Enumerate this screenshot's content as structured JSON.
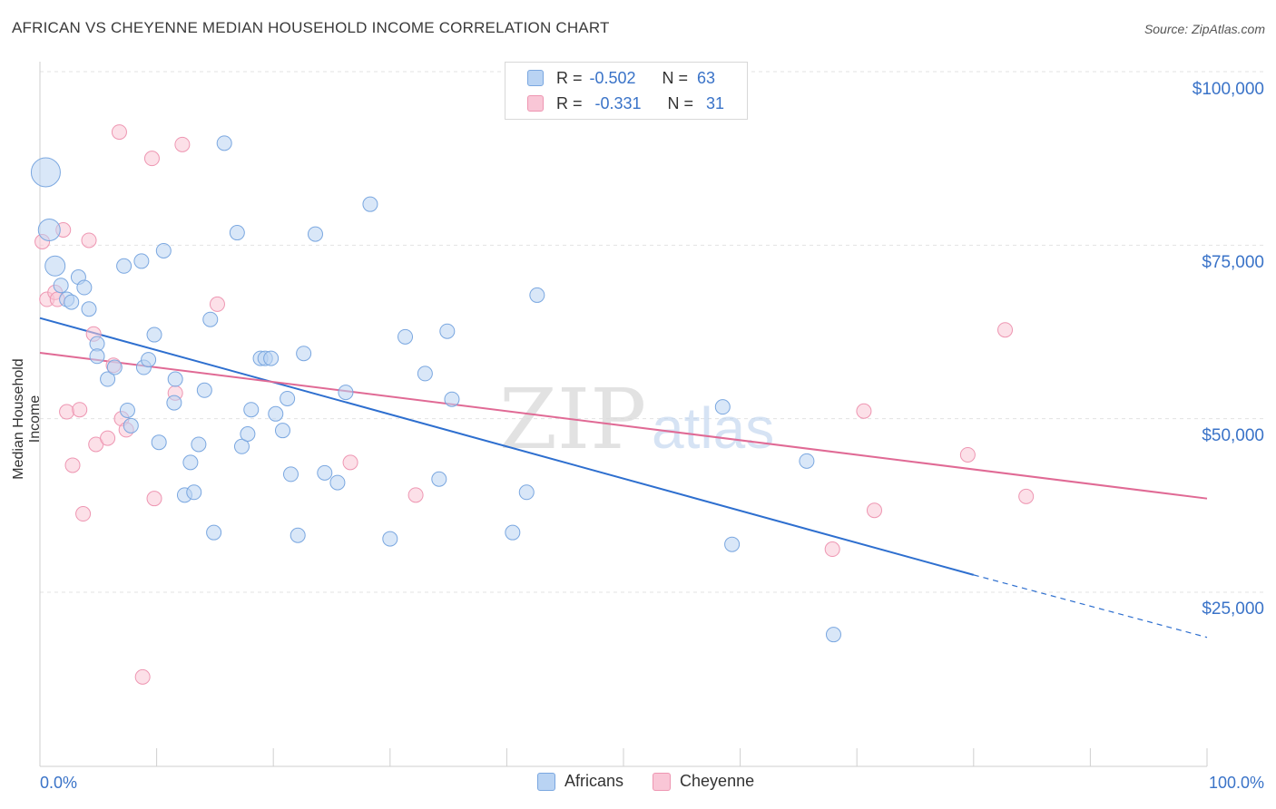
{
  "title": "AFRICAN VS CHEYENNE MEDIAN HOUSEHOLD INCOME CORRELATION CHART",
  "source": "Source: ZipAtlas.com",
  "watermark": {
    "zip": "ZIP",
    "atlas": "atlas"
  },
  "colors": {
    "africans_fill": "#b9d3f3",
    "africans_stroke": "#7aa7e0",
    "africans_line": "#2e6fcf",
    "cheyenne_fill": "#f9c6d6",
    "cheyenne_stroke": "#ee96b2",
    "cheyenne_line": "#e06a95",
    "tick_label": "#3a73c8"
  },
  "legend_stats": [
    {
      "r_label": "R =",
      "r_value": "-0.502",
      "n_label": "N =",
      "n_value": "63"
    },
    {
      "r_label": "R =",
      "r_value": "-0.331",
      "n_label": "N =",
      "n_value": "31"
    }
  ],
  "chart_data": {
    "type": "scatter",
    "title": "AFRICAN VS CHEYENNE MEDIAN HOUSEHOLD INCOME CORRELATION CHART",
    "xlabel": "",
    "ylabel": "Median Household Income",
    "xlim": [
      0,
      100
    ],
    "ylim": [
      0,
      105000
    ],
    "x_tick_labels": [
      "0.0%",
      "100.0%"
    ],
    "y_ticks": [
      25000,
      50000,
      75000,
      100000
    ],
    "y_tick_labels": [
      "$25,000",
      "$50,000",
      "$75,000",
      "$100,000"
    ],
    "grid": true,
    "legend_position": "top-center",
    "series": [
      {
        "name": "Africans",
        "r": -0.502,
        "n": 63,
        "trend": {
          "x0": 0,
          "y0": 64500,
          "x1": 80,
          "y1": 27500,
          "dashed_to_x": 100,
          "dashed_to_y": 18500
        },
        "points": [
          [
            0.5,
            85500,
            16
          ],
          [
            0.8,
            77200,
            12
          ],
          [
            1.3,
            72000,
            11
          ],
          [
            1.8,
            69200,
            8
          ],
          [
            2.3,
            67200,
            8
          ],
          [
            2.7,
            66800,
            8
          ],
          [
            3.3,
            70400,
            8
          ],
          [
            3.8,
            68900,
            8
          ],
          [
            4.2,
            65800,
            8
          ],
          [
            4.9,
            60800,
            8
          ],
          [
            4.9,
            59000,
            8
          ],
          [
            5.8,
            55700,
            8
          ],
          [
            6.4,
            57400,
            8
          ],
          [
            7.2,
            72000,
            8
          ],
          [
            7.5,
            51200,
            8
          ],
          [
            7.8,
            49000,
            8
          ],
          [
            8.7,
            72700,
            8
          ],
          [
            8.9,
            57400,
            8
          ],
          [
            9.3,
            58500,
            8
          ],
          [
            9.8,
            62100,
            8
          ],
          [
            10.2,
            46600,
            8
          ],
          [
            10.6,
            74200,
            8
          ],
          [
            11.5,
            52300,
            8
          ],
          [
            11.6,
            55700,
            8
          ],
          [
            12.4,
            39000,
            8
          ],
          [
            12.9,
            43700,
            8
          ],
          [
            13.2,
            39400,
            8
          ],
          [
            13.6,
            46300,
            8
          ],
          [
            14.1,
            54100,
            8
          ],
          [
            14.6,
            64300,
            8
          ],
          [
            14.9,
            33600,
            8
          ],
          [
            15.8,
            89700,
            8
          ],
          [
            16.9,
            76800,
            8
          ],
          [
            17.3,
            46000,
            8
          ],
          [
            17.8,
            47800,
            8
          ],
          [
            18.1,
            51300,
            8
          ],
          [
            18.9,
            58700,
            8
          ],
          [
            19.3,
            58700,
            8
          ],
          [
            19.8,
            58700,
            8
          ],
          [
            20.2,
            50700,
            8
          ],
          [
            20.8,
            48300,
            8
          ],
          [
            21.2,
            52900,
            8
          ],
          [
            21.5,
            42000,
            8
          ],
          [
            22.1,
            33200,
            8
          ],
          [
            22.6,
            59400,
            8
          ],
          [
            23.6,
            76600,
            8
          ],
          [
            24.4,
            42200,
            8
          ],
          [
            25.5,
            40800,
            8
          ],
          [
            26.2,
            53800,
            8
          ],
          [
            28.3,
            80900,
            8
          ],
          [
            30.0,
            32700,
            8
          ],
          [
            31.3,
            61800,
            8
          ],
          [
            33.0,
            56500,
            8
          ],
          [
            34.2,
            41300,
            8
          ],
          [
            34.9,
            62600,
            8
          ],
          [
            35.3,
            52800,
            8
          ],
          [
            40.5,
            33600,
            8
          ],
          [
            41.7,
            39400,
            8
          ],
          [
            42.6,
            67800,
            8
          ],
          [
            58.5,
            51700,
            8
          ],
          [
            59.3,
            31900,
            8
          ],
          [
            65.7,
            43900,
            8
          ],
          [
            68.0,
            18900,
            8
          ]
        ]
      },
      {
        "name": "Cheyenne",
        "r": -0.331,
        "n": 31,
        "trend": {
          "x0": 0,
          "y0": 59500,
          "x1": 100,
          "y1": 38500
        },
        "points": [
          [
            0.2,
            75500,
            8
          ],
          [
            0.6,
            67200,
            8
          ],
          [
            1.3,
            68200,
            8
          ],
          [
            1.5,
            67200,
            8
          ],
          [
            2.0,
            77200,
            8
          ],
          [
            2.3,
            51000,
            8
          ],
          [
            2.8,
            43300,
            8
          ],
          [
            3.4,
            51300,
            8
          ],
          [
            3.7,
            36300,
            8
          ],
          [
            4.2,
            75700,
            8
          ],
          [
            4.6,
            62200,
            8
          ],
          [
            4.8,
            46300,
            8
          ],
          [
            5.8,
            47200,
            8
          ],
          [
            6.3,
            57700,
            8
          ],
          [
            6.8,
            91300,
            8
          ],
          [
            7.0,
            50000,
            8
          ],
          [
            7.4,
            48400,
            8
          ],
          [
            8.8,
            12800,
            8
          ],
          [
            9.6,
            87500,
            8
          ],
          [
            9.8,
            38500,
            8
          ],
          [
            11.6,
            53700,
            8
          ],
          [
            12.2,
            89500,
            8
          ],
          [
            15.2,
            66500,
            8
          ],
          [
            26.6,
            43700,
            8
          ],
          [
            32.2,
            39000,
            8
          ],
          [
            67.9,
            31200,
            8
          ],
          [
            70.6,
            51100,
            8
          ],
          [
            71.5,
            36800,
            8
          ],
          [
            79.5,
            44800,
            8
          ],
          [
            82.7,
            62800,
            8
          ],
          [
            84.5,
            38800,
            8
          ]
        ]
      }
    ]
  }
}
